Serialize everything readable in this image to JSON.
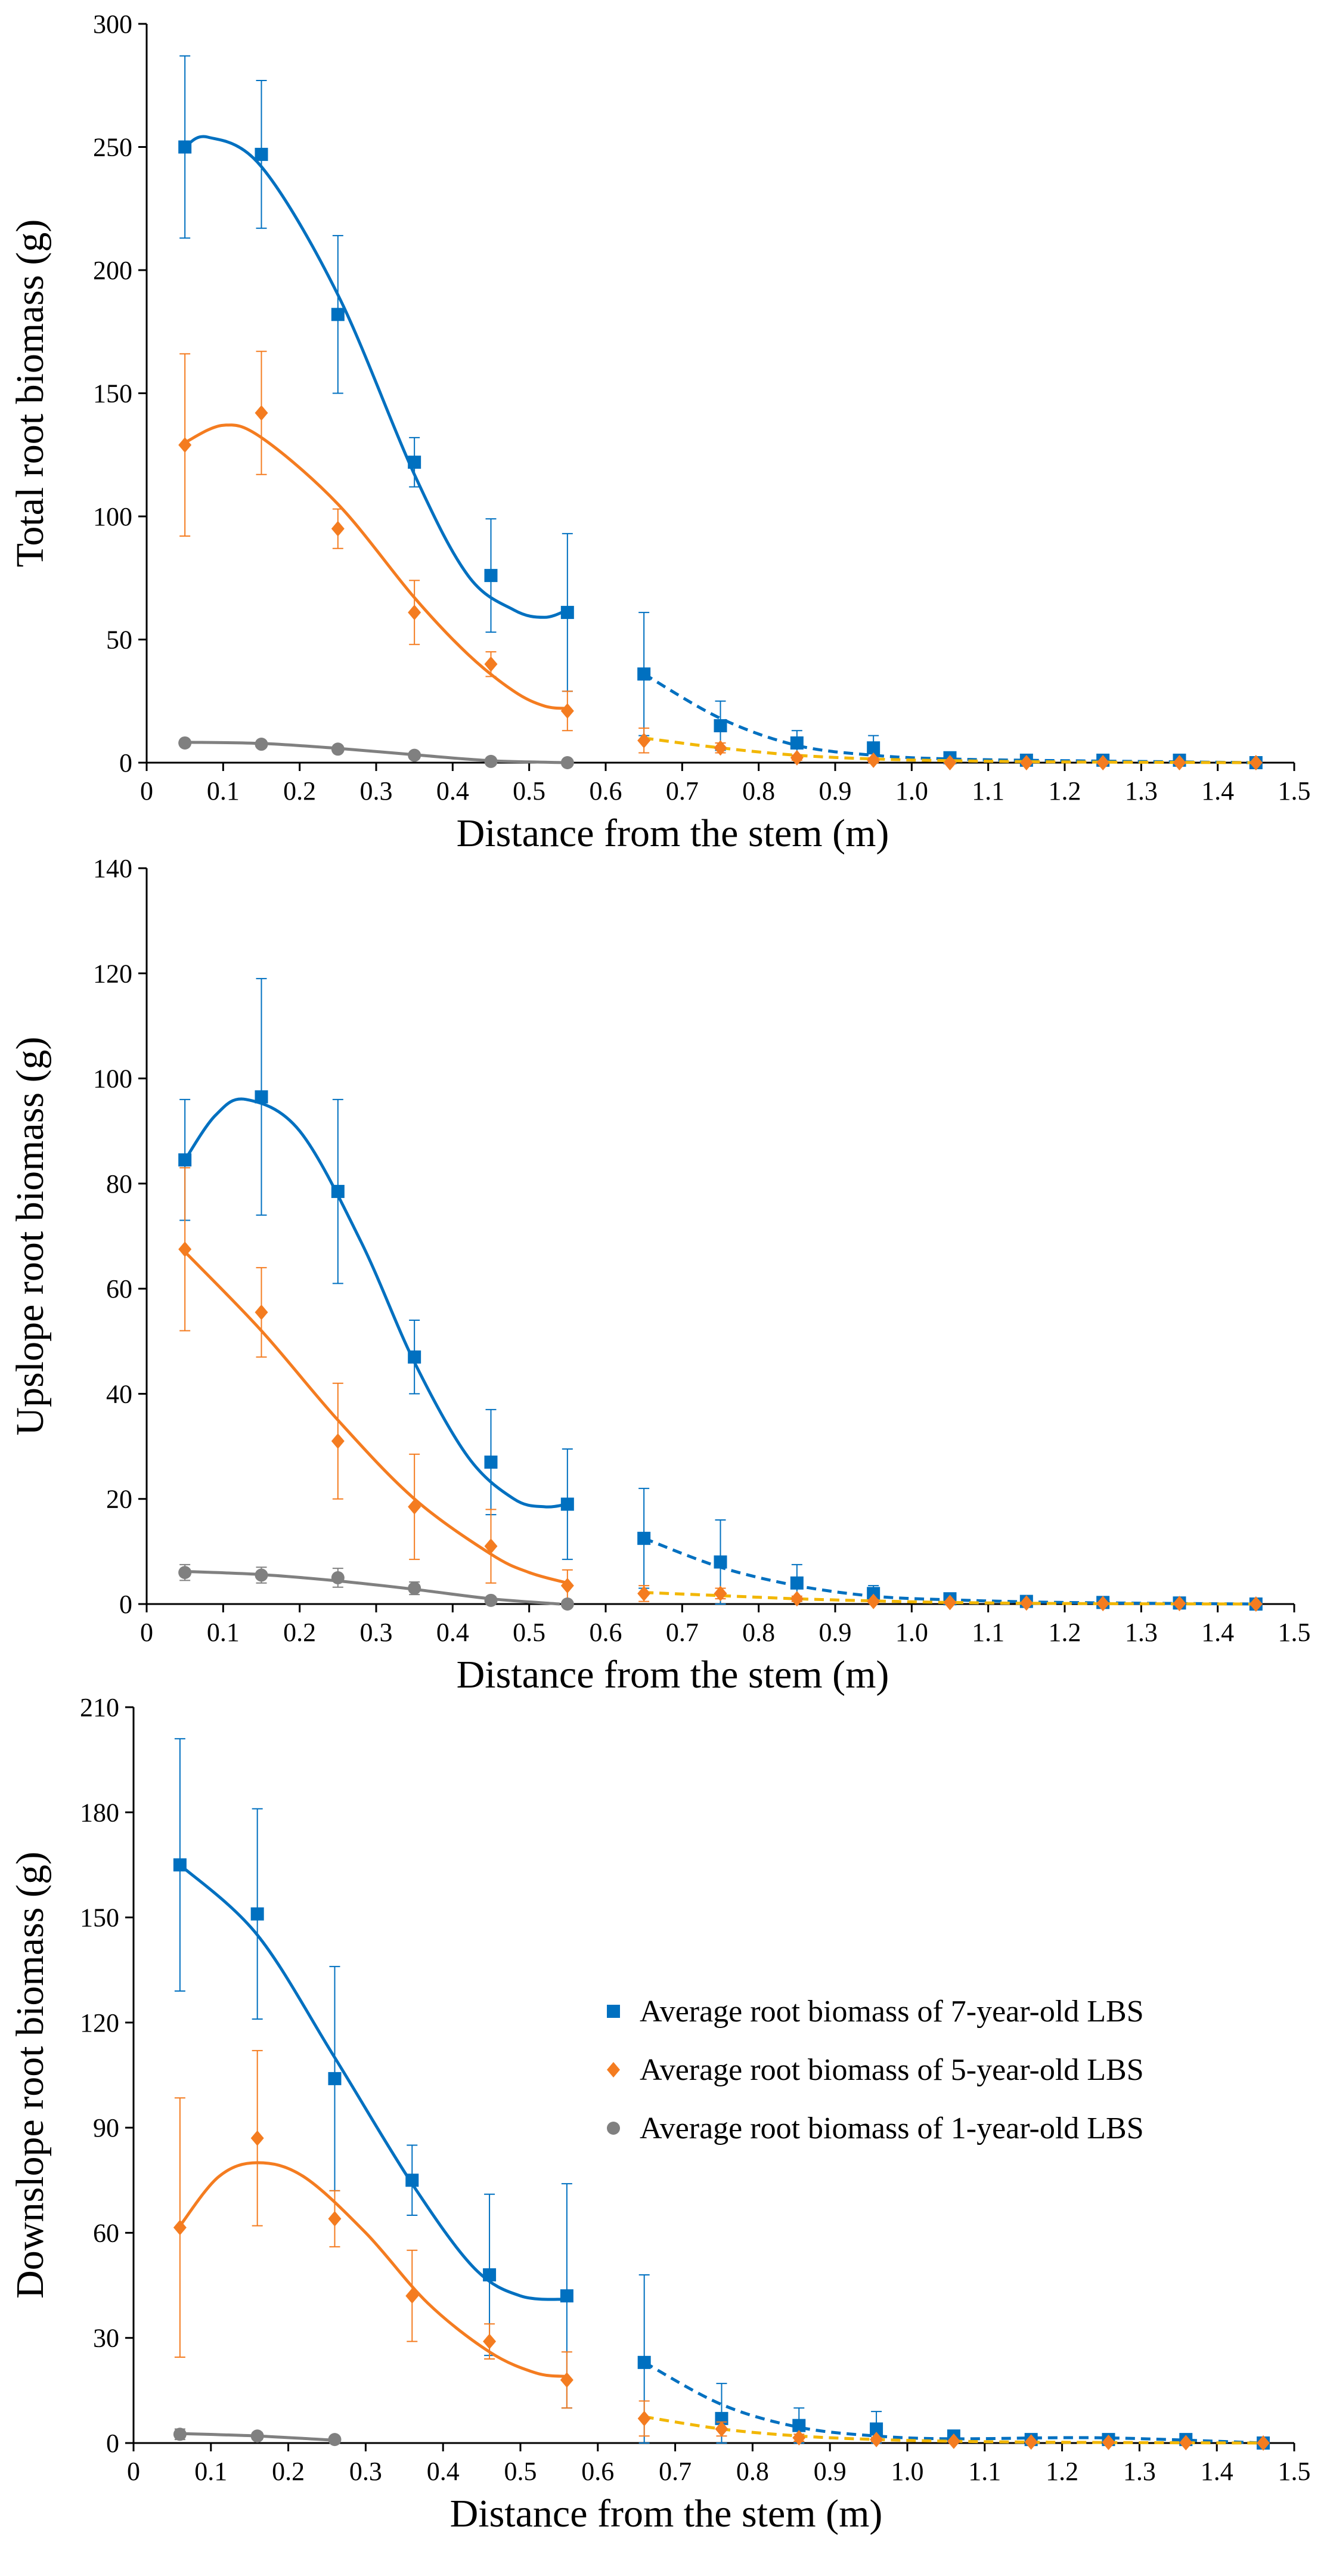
{
  "chart_data": [
    {
      "type": "scatter",
      "xlabel": "Distance from the stem (m)",
      "ylabel": "Total root biomass (g)",
      "xlim": [
        0,
        1.5
      ],
      "ylim": [
        0,
        300
      ],
      "xticks": [
        "0",
        "0.1",
        "0.2",
        "0.3",
        "0.4",
        "0.5",
        "0.6",
        "0.7",
        "0.8",
        "0.9",
        "1.0",
        "1.1",
        "1.2",
        "1.3",
        "1.4",
        "1.5"
      ],
      "yticks": [
        "0",
        "50",
        "100",
        "150",
        "200",
        "250",
        "300"
      ],
      "series": [
        {
          "name": "Average root biomass of 7-year-old LBS",
          "color": "#0070c0",
          "marker": "square",
          "x": [
            0.05,
            0.15,
            0.25,
            0.35,
            0.45,
            0.55,
            0.65,
            0.75,
            0.85,
            0.95,
            1.05,
            1.15,
            1.25,
            1.35,
            1.45
          ],
          "y": [
            250,
            247,
            182,
            122,
            76,
            61,
            36,
            15,
            8,
            6,
            2,
            1,
            1,
            1,
            0
          ],
          "err": [
            37,
            30,
            32,
            10,
            23,
            32,
            25,
            10,
            5,
            5,
            2,
            1,
            1,
            1,
            0
          ],
          "fit_solid": [
            [
              0.05,
              250
            ],
            [
              0.08,
              254
            ],
            [
              0.15,
              242
            ],
            [
              0.25,
              190
            ],
            [
              0.35,
              117
            ],
            [
              0.42,
              76
            ],
            [
              0.48,
              62
            ],
            [
              0.52,
              59
            ],
            [
              0.55,
              62
            ]
          ],
          "fit_dashed": [
            [
              0.65,
              36
            ],
            [
              0.75,
              18
            ],
            [
              0.85,
              7
            ],
            [
              0.95,
              3
            ],
            [
              1.05,
              1.5
            ],
            [
              1.2,
              0.8
            ],
            [
              1.45,
              0
            ]
          ]
        },
        {
          "name": "Average root biomass of 5-year-old LBS",
          "color": "#f47c20",
          "marker": "diamond",
          "dashed_color": "#f2b705",
          "x": [
            0.05,
            0.15,
            0.25,
            0.35,
            0.45,
            0.55,
            0.65,
            0.75,
            0.85,
            0.95,
            1.05,
            1.15,
            1.25,
            1.35,
            1.45
          ],
          "y": [
            129,
            142,
            95,
            61,
            40,
            21,
            9,
            6,
            2,
            1,
            0,
            0,
            0,
            0,
            0
          ],
          "err": [
            37,
            25,
            8,
            13,
            5,
            8,
            5,
            2,
            1,
            1,
            0,
            0,
            0,
            0,
            0
          ],
          "fit_solid": [
            [
              0.05,
              130
            ],
            [
              0.1,
              137
            ],
            [
              0.15,
              132
            ],
            [
              0.25,
              105
            ],
            [
              0.35,
              67
            ],
            [
              0.42,
              44
            ],
            [
              0.48,
              29
            ],
            [
              0.52,
              23
            ],
            [
              0.55,
              22
            ]
          ],
          "fit_dashed": [
            [
              0.65,
              10
            ],
            [
              0.75,
              6
            ],
            [
              0.85,
              3
            ],
            [
              0.95,
              1.5
            ],
            [
              1.05,
              0.8
            ],
            [
              1.2,
              0.3
            ],
            [
              1.45,
              0
            ]
          ]
        },
        {
          "name": "Average root biomass of 1-year-old LBS",
          "color": "#808080",
          "marker": "circle",
          "x": [
            0.05,
            0.15,
            0.25,
            0.35,
            0.45,
            0.55
          ],
          "y": [
            8,
            7.5,
            5.5,
            3,
            0.5,
            0
          ],
          "err": [
            0,
            0,
            0,
            0,
            0,
            0
          ],
          "fit_solid": [
            [
              0.05,
              8.3
            ],
            [
              0.15,
              7.8
            ],
            [
              0.25,
              5.8
            ],
            [
              0.35,
              3.2
            ],
            [
              0.45,
              0.8
            ],
            [
              0.55,
              0
            ]
          ],
          "fit_dashed": []
        }
      ]
    },
    {
      "type": "scatter",
      "xlabel": "Distance from the stem (m)",
      "ylabel": "Upslope root biomass (g)",
      "xlim": [
        0,
        1.5
      ],
      "ylim": [
        0,
        140
      ],
      "xticks": [
        "0",
        "0.1",
        "0.2",
        "0.3",
        "0.4",
        "0.5",
        "0.6",
        "0.7",
        "0.8",
        "0.9",
        "1.0",
        "1.1",
        "1.2",
        "1.3",
        "1.4",
        "1.5"
      ],
      "yticks": [
        "0",
        "20",
        "40",
        "60",
        "80",
        "100",
        "120",
        "140"
      ],
      "series": [
        {
          "name": "Average root biomass of 7-year-old LBS",
          "color": "#0070c0",
          "marker": "square",
          "x": [
            0.05,
            0.15,
            0.25,
            0.35,
            0.45,
            0.55,
            0.65,
            0.75,
            0.85,
            0.95,
            1.05,
            1.15,
            1.25,
            1.35,
            1.45
          ],
          "y": [
            84.5,
            96.5,
            78.5,
            47,
            27,
            19,
            12.5,
            8,
            4,
            2,
            1,
            0.5,
            0.3,
            0.2,
            0
          ],
          "err": [
            11.5,
            22.5,
            17.5,
            7,
            10,
            10.5,
            9.5,
            8,
            3.5,
            1.5,
            0.5,
            0.3,
            0.2,
            0.2,
            0
          ],
          "fit_solid": [
            [
              0.05,
              84.5
            ],
            [
              0.09,
              93
            ],
            [
              0.13,
              96
            ],
            [
              0.2,
              90
            ],
            [
              0.28,
              69
            ],
            [
              0.35,
              46
            ],
            [
              0.42,
              28
            ],
            [
              0.48,
              20
            ],
            [
              0.52,
              18.5
            ],
            [
              0.55,
              19
            ]
          ],
          "fit_dashed": [
            [
              0.65,
              12.5
            ],
            [
              0.75,
              7
            ],
            [
              0.85,
              3.5
            ],
            [
              0.95,
              1.5
            ],
            [
              1.05,
              0.8
            ],
            [
              1.2,
              0.3
            ],
            [
              1.45,
              0
            ]
          ]
        },
        {
          "name": "Average root biomass of 5-year-old LBS",
          "color": "#f47c20",
          "marker": "diamond",
          "dashed_color": "#f2b705",
          "x": [
            0.05,
            0.15,
            0.25,
            0.35,
            0.45,
            0.55,
            0.65,
            0.75,
            0.85,
            0.95,
            1.05,
            1.15,
            1.25,
            1.35,
            1.45
          ],
          "y": [
            67.5,
            55.5,
            31,
            18.5,
            11,
            3.5,
            2,
            2,
            1,
            0.5,
            0.3,
            0.2,
            0.1,
            0.1,
            0
          ],
          "err": [
            15.5,
            8.5,
            11,
            10,
            7,
            3,
            1.5,
            1,
            0.5,
            0.3,
            0.2,
            0.1,
            0.1,
            0,
            0
          ],
          "fit_solid": [
            [
              0.05,
              67
            ],
            [
              0.15,
              52
            ],
            [
              0.25,
              35
            ],
            [
              0.35,
              20
            ],
            [
              0.45,
              9.5
            ],
            [
              0.5,
              6
            ],
            [
              0.55,
              4
            ]
          ],
          "fit_dashed": [
            [
              0.65,
              2.2
            ],
            [
              0.75,
              1.6
            ],
            [
              0.85,
              1
            ],
            [
              0.95,
              0.6
            ],
            [
              1.05,
              0.3
            ],
            [
              1.2,
              0.1
            ],
            [
              1.45,
              0
            ]
          ]
        },
        {
          "name": "Average root biomass of 1-year-old LBS",
          "color": "#808080",
          "marker": "circle",
          "x": [
            0.05,
            0.15,
            0.25,
            0.35,
            0.45,
            0.55
          ],
          "y": [
            6,
            5.5,
            5,
            3,
            0.7,
            0
          ],
          "err": [
            1.5,
            1.5,
            1.8,
            1.2,
            0.5,
            0
          ],
          "fit_solid": [
            [
              0.05,
              6.2
            ],
            [
              0.15,
              5.6
            ],
            [
              0.25,
              4.4
            ],
            [
              0.35,
              2.8
            ],
            [
              0.45,
              1
            ],
            [
              0.54,
              0
            ]
          ],
          "fit_dashed": []
        }
      ]
    },
    {
      "type": "scatter",
      "xlabel": "Distance from the stem (m)",
      "ylabel": "Downslope root biomass (g)",
      "xlim": [
        0,
        1.5
      ],
      "ylim": [
        0,
        210
      ],
      "xticks": [
        "0",
        "0.1",
        "0.2",
        "0.3",
        "0.4",
        "0.5",
        "0.6",
        "0.7",
        "0.8",
        "0.9",
        "1.0",
        "1.1",
        "1.2",
        "1.3",
        "1.4",
        "1.5"
      ],
      "yticks": [
        "0",
        "30",
        "60",
        "90",
        "120",
        "150",
        "180",
        "210"
      ],
      "legend": [
        "Average root biomass of 7-year-old LBS",
        "Average root biomass of 5-year-old LBS",
        "Average root biomass of 1-year-old LBS"
      ],
      "series": [
        {
          "name": "Average root biomass of 7-year-old LBS",
          "color": "#0070c0",
          "marker": "square",
          "x": [
            0.06,
            0.16,
            0.26,
            0.36,
            0.46,
            0.56,
            0.66,
            0.76,
            0.86,
            0.96,
            1.06,
            1.16,
            1.26,
            1.36,
            1.46
          ],
          "y": [
            165,
            151,
            104,
            75,
            48,
            42,
            23,
            7,
            5,
            4,
            2,
            1,
            1,
            1,
            0
          ],
          "err": [
            36,
            30,
            32,
            10,
            23,
            32,
            25,
            10,
            5,
            5,
            1,
            1,
            1,
            1,
            0
          ],
          "fit_solid": [
            [
              0.06,
              165
            ],
            [
              0.16,
              145
            ],
            [
              0.26,
              110
            ],
            [
              0.36,
              74
            ],
            [
              0.44,
              50
            ],
            [
              0.5,
              42
            ],
            [
              0.56,
              41
            ]
          ],
          "fit_dashed": [
            [
              0.66,
              23
            ],
            [
              0.76,
              11
            ],
            [
              0.86,
              4.5
            ],
            [
              0.96,
              2
            ],
            [
              1.06,
              1.2
            ],
            [
              1.25,
              1.5
            ],
            [
              1.46,
              0
            ]
          ]
        },
        {
          "name": "Average root biomass of 5-year-old LBS",
          "color": "#f47c20",
          "marker": "diamond",
          "dashed_color": "#f2b705",
          "x": [
            0.06,
            0.16,
            0.26,
            0.36,
            0.46,
            0.56,
            0.66,
            0.76,
            0.86,
            0.96,
            1.06,
            1.16,
            1.26,
            1.36,
            1.46
          ],
          "y": [
            61.5,
            87,
            64,
            42,
            29,
            18,
            7,
            4,
            1.5,
            1,
            0.5,
            0.3,
            0.2,
            0.1,
            0
          ],
          "err": [
            37,
            25,
            8,
            13,
            5,
            8,
            5,
            2,
            1,
            0.5,
            0.3,
            0.2,
            0.1,
            0.1,
            0
          ],
          "fit_solid": [
            [
              0.06,
              62
            ],
            [
              0.11,
              76
            ],
            [
              0.16,
              80
            ],
            [
              0.22,
              76
            ],
            [
              0.3,
              60
            ],
            [
              0.38,
              40
            ],
            [
              0.46,
              26
            ],
            [
              0.52,
              20
            ],
            [
              0.56,
              19
            ]
          ],
          "fit_dashed": [
            [
              0.66,
              7.5
            ],
            [
              0.76,
              4
            ],
            [
              0.86,
              2
            ],
            [
              0.96,
              1
            ],
            [
              1.06,
              0.5
            ],
            [
              1.2,
              0.2
            ],
            [
              1.46,
              0
            ]
          ]
        },
        {
          "name": "Average root biomass of 1-year-old LBS",
          "color": "#808080",
          "marker": "circle",
          "x": [
            0.06,
            0.16,
            0.26
          ],
          "y": [
            2.5,
            2,
            1
          ],
          "err": [
            1.5,
            1,
            0.5
          ],
          "fit_solid": [
            [
              0.06,
              2.7
            ],
            [
              0.16,
              2
            ],
            [
              0.26,
              0.8
            ]
          ],
          "fit_dashed": []
        }
      ]
    }
  ]
}
